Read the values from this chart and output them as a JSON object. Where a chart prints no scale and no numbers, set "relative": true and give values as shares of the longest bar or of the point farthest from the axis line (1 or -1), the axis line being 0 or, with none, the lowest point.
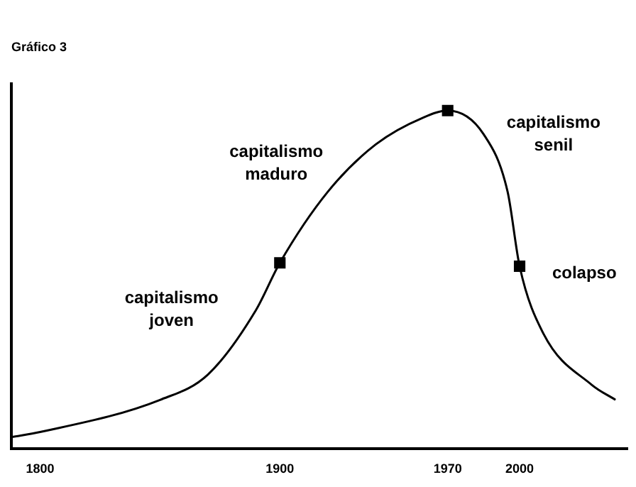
{
  "chart_data": {
    "type": "line",
    "title": "Gráfico 3",
    "relative": true,
    "xlim": [
      1788,
      2045
    ],
    "xticks": [
      1800,
      1900,
      1970,
      2000
    ],
    "tick_labels": "x",
    "grid": false,
    "legend": false,
    "series": [
      {
        "type": "line",
        "color": "#000000",
        "marker": "none",
        "x": [
          1788,
          1800,
          1850,
          1870,
          1890,
          1900,
          1920,
          1940,
          1960,
          1970,
          1985,
          1995,
          2000,
          2010,
          2030,
          2040
        ],
        "values": [
          0.035,
          0.05,
          0.145,
          0.22,
          0.41,
          0.55,
          0.76,
          0.9,
          0.98,
          1,
          0.93,
          0.76,
          0.54,
          0.34,
          0.19,
          0.145
        ]
      },
      {
        "type": "scatter",
        "color": "#000000",
        "marker": "square",
        "x": [
          1900,
          1970,
          2000
        ],
        "values": [
          0.55,
          1,
          0.54
        ]
      }
    ],
    "annotations": [
      "capitalismo joven",
      "capitalismo maduro",
      "capitalismo senil",
      "colapso"
    ]
  }
}
